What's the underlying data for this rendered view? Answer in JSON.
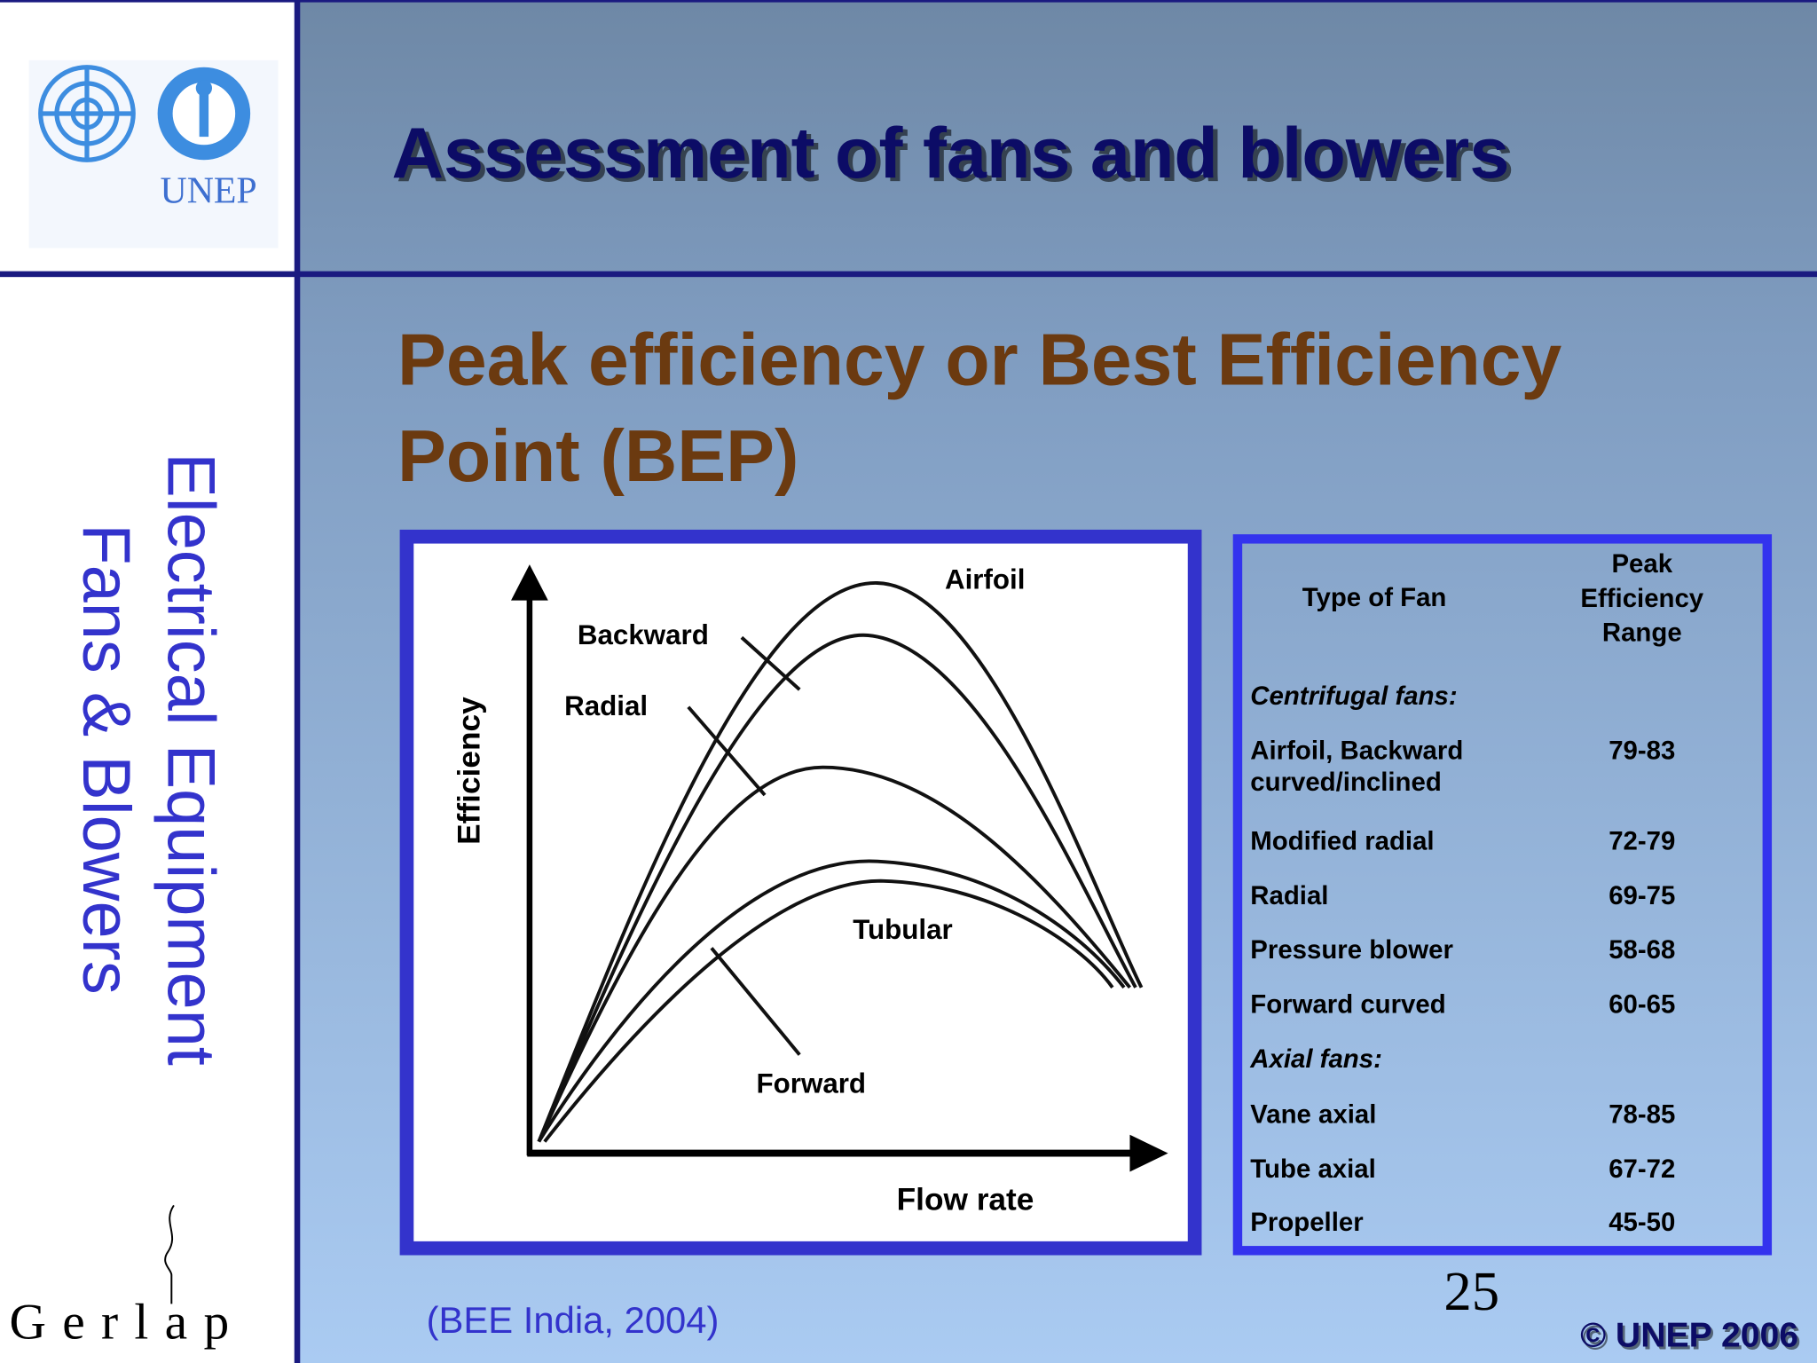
{
  "sidebar": {
    "logo_text": "UNEP",
    "vertical_title": [
      "Electrical Equipment",
      "Fans & Blowers"
    ],
    "brand": "Gerlap"
  },
  "header": {
    "title": "Assessment of fans and blowers"
  },
  "subtitle": [
    "Peak efficiency or Best Efficiency",
    "Point (BEP)"
  ],
  "diagram": {
    "y_axis_label": "Efficiency",
    "x_axis_label": "Flow rate",
    "curve_labels": [
      "Airfoil",
      "Backward",
      "Radial",
      "Tubular",
      "Forward"
    ]
  },
  "table": {
    "header": {
      "type": "Type of Fan",
      "range": [
        "Peak",
        "Efficiency",
        "Range"
      ]
    },
    "rows": [
      {
        "section": "Centrifugal fans:"
      },
      {
        "type": [
          "Airfoil, Backward",
          "curved/inclined"
        ],
        "range": "79-83"
      },
      {
        "type": [
          "Modified radial"
        ],
        "range": "72-79"
      },
      {
        "type": [
          "Radial"
        ],
        "range": "69-75"
      },
      {
        "type": [
          "Pressure blower"
        ],
        "range": "58-68"
      },
      {
        "type": [
          "Forward curved"
        ],
        "range": "60-65"
      },
      {
        "section": "Axial fans:"
      },
      {
        "type": [
          "Vane axial"
        ],
        "range": "78-85"
      },
      {
        "type": [
          "Tube axial"
        ],
        "range": "67-72"
      },
      {
        "type": [
          "Propeller"
        ],
        "range": "45-50"
      }
    ]
  },
  "footer": {
    "source": "(BEE India, 2004)",
    "page": "25",
    "copyright": "© UNEP 2006"
  }
}
